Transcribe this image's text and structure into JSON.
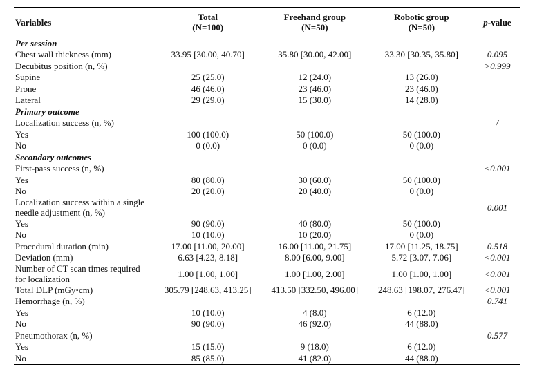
{
  "header": {
    "variables": "Variables",
    "total": [
      "Total",
      "(N=100)"
    ],
    "freehand": [
      "Freehand group",
      "(N=50)"
    ],
    "robotic": [
      "Robotic group",
      "(N=50)"
    ],
    "p_italic": "p",
    "p_rest": "-value"
  },
  "rows": [
    {
      "type": "section",
      "label": "Per session"
    },
    {
      "type": "var",
      "label": "Chest wall thickness (mm)",
      "total": "33.95 [30.00, 40.70]",
      "freehand": "35.80 [30.00, 42.00]",
      "robotic": "33.30 [30.35, 35.80]",
      "p": "0.095"
    },
    {
      "type": "var",
      "label": "Decubitus position (n, %)",
      "total": "",
      "freehand": "",
      "robotic": "",
      "p": ">0.999"
    },
    {
      "type": "sub",
      "label": "Supine",
      "total": "25 (25.0)",
      "freehand": "12 (24.0)",
      "robotic": "13 (26.0)",
      "p": ""
    },
    {
      "type": "sub",
      "label": "Prone",
      "total": "46 (46.0)",
      "freehand": "23 (46.0)",
      "robotic": "23 (46.0)",
      "p": ""
    },
    {
      "type": "sub",
      "label": "Lateral",
      "total": "29 (29.0)",
      "freehand": "15 (30.0)",
      "robotic": "14 (28.0)",
      "p": ""
    },
    {
      "type": "section",
      "label": "Primary outcome"
    },
    {
      "type": "var",
      "label": "Localization success (n, %)",
      "total": "",
      "freehand": "",
      "robotic": "",
      "p": "/"
    },
    {
      "type": "sub",
      "label": "Yes",
      "total": "100 (100.0)",
      "freehand": "50 (100.0)",
      "robotic": "50 (100.0)",
      "p": ""
    },
    {
      "type": "sub",
      "label": "No",
      "total": "0 (0.0)",
      "freehand": "0 (0.0)",
      "robotic": "0 (0.0)",
      "p": ""
    },
    {
      "type": "section",
      "label": "Secondary outcomes"
    },
    {
      "type": "var",
      "label": "First-pass success (n, %)",
      "total": "",
      "freehand": "",
      "robotic": "",
      "p": "<0.001"
    },
    {
      "type": "sub",
      "label": "Yes",
      "total": "80 (80.0)",
      "freehand": "30 (60.0)",
      "robotic": "50 (100.0)",
      "p": ""
    },
    {
      "type": "sub",
      "label": "No",
      "total": "20 (20.0)",
      "freehand": "20 (40.0)",
      "robotic": "0 (0.0)",
      "p": ""
    },
    {
      "type": "var2",
      "label": [
        "Localization success within a single",
        "needle adjustment (n, %)"
      ],
      "total": "",
      "freehand": "",
      "robotic": "",
      "p": "0.001"
    },
    {
      "type": "sub",
      "label": "Yes",
      "total": "90 (90.0)",
      "freehand": "40 (80.0)",
      "robotic": "50 (100.0)",
      "p": ""
    },
    {
      "type": "sub",
      "label": "No",
      "total": "10 (10.0)",
      "freehand": "10 (20.0)",
      "robotic": "0 (0.0)",
      "p": ""
    },
    {
      "type": "var",
      "label": "Procedural duration (min)",
      "total": "17.00 [11.00, 20.00]",
      "freehand": "16.00 [11.00, 21.75]",
      "robotic": "17.00 [11.25, 18.75]",
      "p": "0.518"
    },
    {
      "type": "var",
      "label": "Deviation (mm)",
      "total": "6.63 [4.23, 8.18]",
      "freehand": "8.00 [6.00, 9.00]",
      "robotic": "5.72 [3.07, 7.06]",
      "p": "<0.001"
    },
    {
      "type": "var2",
      "label": [
        "Number of CT scan times required",
        "for localization"
      ],
      "total": "1.00 [1.00, 1.00]",
      "freehand": "1.00 [1.00, 2.00]",
      "robotic": "1.00 [1.00, 1.00]",
      "p": "<0.001"
    },
    {
      "type": "var",
      "label": "Total DLP (mGy•cm)",
      "total": "305.79 [248.63, 413.25]",
      "freehand": "413.50 [332.50, 496.00]",
      "robotic": "248.63 [198.07, 276.47]",
      "p": "<0.001"
    },
    {
      "type": "var",
      "label": "Hemorrhage (n, %)",
      "total": "",
      "freehand": "",
      "robotic": "",
      "p": "0.741"
    },
    {
      "type": "sub",
      "label": "Yes",
      "total": "10 (10.0)",
      "freehand": "4 (8.0)",
      "robotic": "6 (12.0)",
      "p": ""
    },
    {
      "type": "sub",
      "label": "No",
      "total": "90 (90.0)",
      "freehand": "46 (92.0)",
      "robotic": "44 (88.0)",
      "p": ""
    },
    {
      "type": "var",
      "label": "Pneumothorax (n, %)",
      "total": "",
      "freehand": "",
      "robotic": "",
      "p": "0.577"
    },
    {
      "type": "sub",
      "label": "Yes",
      "total": "15 (15.0)",
      "freehand": "9 (18.0)",
      "robotic": "6 (12.0)",
      "p": ""
    },
    {
      "type": "sub",
      "label": "No",
      "total": "85 (85.0)",
      "freehand": "41 (82.0)",
      "robotic": "44 (88.0)",
      "p": ""
    }
  ]
}
